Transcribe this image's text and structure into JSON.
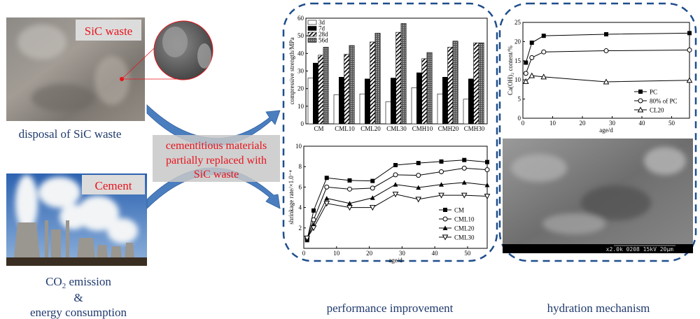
{
  "left": {
    "sic_label": "SiC waste",
    "sic_caption": "disposal of SiC waste",
    "cement_label": "Cement",
    "co2_main": "CO",
    "co2_sub": "2",
    "co2_rest": " emission",
    "ampersand": "&",
    "energy": "energy consumption"
  },
  "center_box": {
    "line1": "cementitious materials",
    "line2": "partially replaced with",
    "line3": "SiC waste"
  },
  "captions": {
    "performance": "performance improvement",
    "hydration": "hydration mechanism"
  },
  "sem": {
    "bar_text": "x2.0k 0208 15kV 20µm"
  },
  "colors": {
    "arrow": "#4a7ebf",
    "dash": "#1f4e8c",
    "label_red": "#e8141c",
    "caption_blue": "#1f3a6e"
  },
  "chart_data": [
    {
      "type": "bar",
      "ylabel": "compressive strength/MPa",
      "ylim": [
        0,
        60
      ],
      "yticks": [
        "0",
        "10",
        "20",
        "30",
        "40",
        "50",
        "60"
      ],
      "categories": [
        "CM",
        "CML10",
        "CML20",
        "CML30",
        "CMH10",
        "CMH20",
        "CMH30"
      ],
      "legend": "top-left",
      "series": [
        {
          "name": "3d",
          "values": [
            26,
            16.5,
            17,
            12.5,
            20.5,
            17,
            14
          ]
        },
        {
          "name": "7d",
          "values": [
            34.5,
            26.5,
            25.5,
            26,
            29,
            26.5,
            25.5
          ]
        },
        {
          "name": "28d",
          "values": [
            39,
            39.5,
            46.5,
            52,
            37,
            43.5,
            46
          ]
        },
        {
          "name": "56d",
          "values": [
            43.5,
            44.5,
            51.5,
            57,
            40.5,
            47,
            46
          ]
        }
      ]
    },
    {
      "type": "line",
      "xlabel": "age/d",
      "ylabel": "shrinkage rate/×1.0⁻⁴",
      "xlim": [
        0,
        56
      ],
      "ylim": [
        0,
        10
      ],
      "xticks": [
        "0",
        "10",
        "20",
        "30",
        "40",
        "50"
      ],
      "yticks": [
        "2",
        "4",
        "6",
        "8",
        "10"
      ],
      "legend": "bottom-right",
      "x": [
        1,
        3,
        7,
        14,
        21,
        28,
        35,
        42,
        49,
        56
      ],
      "series": [
        {
          "name": "CM",
          "marker": "square",
          "values": [
            0.8,
            3.7,
            6.9,
            6.65,
            6.6,
            8.15,
            8.35,
            8.5,
            8.65,
            8.45
          ]
        },
        {
          "name": "CML10",
          "marker": "circle",
          "values": [
            1.0,
            2.8,
            6.0,
            5.8,
            5.9,
            7.2,
            7.15,
            7.5,
            7.85,
            7.7
          ]
        },
        {
          "name": "CML20",
          "marker": "triangle",
          "values": [
            1.0,
            2.3,
            4.9,
            4.4,
            4.95,
            6.25,
            5.95,
            6.25,
            6.45,
            6.2
          ]
        },
        {
          "name": "CML30",
          "marker": "tri-down",
          "values": [
            1.0,
            2.0,
            4.4,
            4.0,
            4.0,
            5.3,
            4.8,
            5.2,
            5.2,
            5.1
          ]
        }
      ]
    },
    {
      "type": "line",
      "xlabel": "age/d",
      "ylabel": "Ca(OH)₂ content/%",
      "xlim": [
        0,
        56
      ],
      "ylim": [
        0,
        25
      ],
      "xticks": [
        "0",
        "10",
        "20",
        "30",
        "40",
        "50"
      ],
      "yticks": [
        "0",
        "5",
        "10",
        "15",
        "20",
        "25"
      ],
      "legend": "bottom-right",
      "x": [
        1,
        3,
        7,
        28,
        56
      ],
      "series": [
        {
          "name": "PC",
          "marker": "square",
          "values": [
            14.5,
            19.7,
            21.5,
            21.9,
            22.2
          ]
        },
        {
          "name": "80% of PC",
          "marker": "circle",
          "values": [
            11.7,
            15.8,
            17.3,
            17.6,
            17.8
          ]
        },
        {
          "name": "CL20",
          "marker": "triangle-open",
          "values": [
            9.6,
            11.1,
            10.8,
            9.5,
            9.9
          ]
        }
      ]
    }
  ]
}
